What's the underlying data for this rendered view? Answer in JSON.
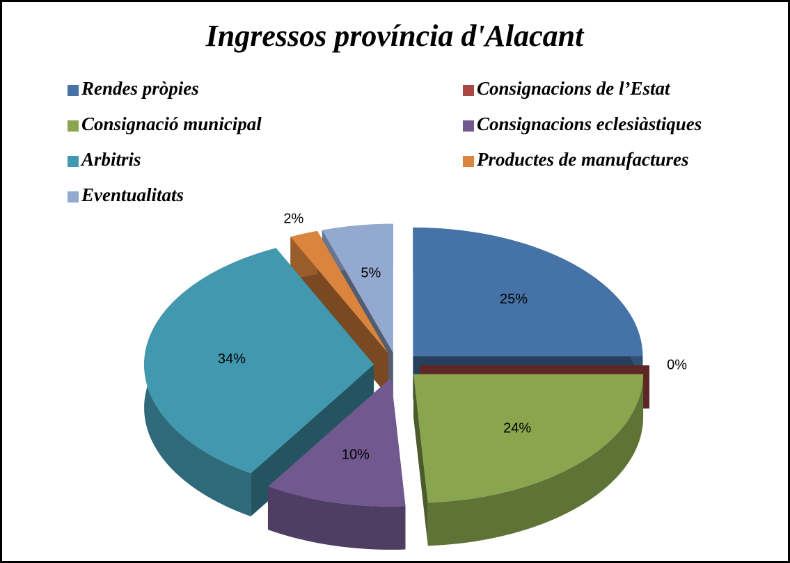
{
  "chart_data": {
    "type": "pie",
    "title": "Ingressos província d'Alacant",
    "categories": [
      "Rendes pròpies",
      "Consignacions de l’Estat",
      "Consignació municipal",
      "Consignacions eclesiàstiques",
      "Arbitris",
      "Productes de manufactures",
      "Eventualitats"
    ],
    "values": [
      25,
      0,
      24,
      10,
      34,
      2,
      5
    ],
    "value_labels": [
      "25%",
      "0%",
      "24%",
      "10%",
      "34%",
      "2%",
      "5%"
    ],
    "colors": [
      "#4572A7",
      "#AA4643",
      "#89A54E",
      "#71588F",
      "#4198AF",
      "#DB843D",
      "#93A9CF"
    ],
    "legend": "top"
  }
}
